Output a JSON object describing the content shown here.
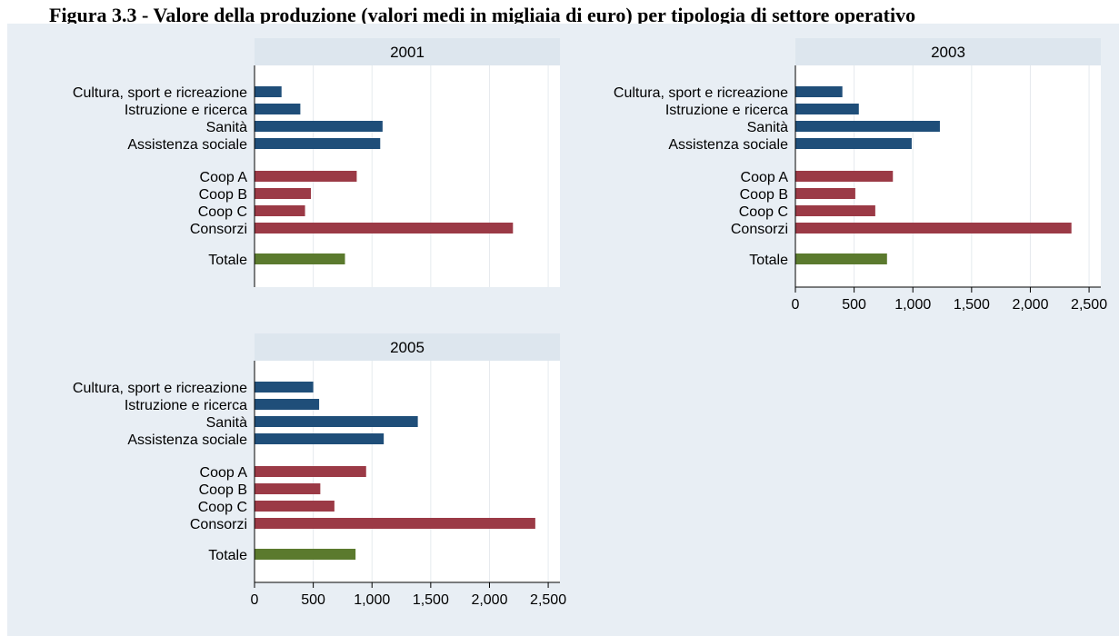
{
  "title": "Figura 3.3 - Valore della produzione (valori medi in migliaia di euro) per tipologia di settore operativo",
  "colors": {
    "background": "#e8eef4",
    "plot_background": "#ffffff",
    "strip": "#dde6ee",
    "sector": "#1f4e79",
    "coop": "#9b3a46",
    "total": "#5b7a2e"
  },
  "chart_data": [
    {
      "type": "bar",
      "orientation": "horizontal",
      "title": "2001",
      "categories": [
        "Cultura, sport e ricreazione",
        "Istruzione e ricerca",
        "Sanità",
        "Assistenza sociale",
        "Coop A",
        "Coop B",
        "Coop C",
        "Consorzi",
        "Totale"
      ],
      "groups": [
        "sector",
        "sector",
        "sector",
        "sector",
        "coop",
        "coop",
        "coop",
        "coop",
        "total"
      ],
      "values": [
        230,
        390,
        1090,
        1070,
        870,
        480,
        430,
        2200,
        770
      ],
      "xlim": [
        0,
        2600
      ],
      "xticks": [
        0,
        500,
        1000,
        1500,
        2000,
        2500
      ],
      "xtick_labels": [],
      "grid": true
    },
    {
      "type": "bar",
      "orientation": "horizontal",
      "title": "2003",
      "categories": [
        "Cultura, sport e ricreazione",
        "Istruzione e ricerca",
        "Sanità",
        "Assistenza sociale",
        "Coop A",
        "Coop B",
        "Coop C",
        "Consorzi",
        "Totale"
      ],
      "groups": [
        "sector",
        "sector",
        "sector",
        "sector",
        "coop",
        "coop",
        "coop",
        "coop",
        "total"
      ],
      "values": [
        400,
        540,
        1230,
        990,
        830,
        510,
        680,
        2350,
        780
      ],
      "xlim": [
        0,
        2600
      ],
      "xticks": [
        0,
        500,
        1000,
        1500,
        2000,
        2500
      ],
      "xtick_labels": [
        "0",
        "500",
        "1,000",
        "1,500",
        "2,000",
        "2,500"
      ],
      "grid": true
    },
    {
      "type": "bar",
      "orientation": "horizontal",
      "title": "2005",
      "categories": [
        "Cultura, sport e ricreazione",
        "Istruzione e ricerca",
        "Sanità",
        "Assistenza sociale",
        "Coop A",
        "Coop B",
        "Coop C",
        "Consorzi",
        "Totale"
      ],
      "groups": [
        "sector",
        "sector",
        "sector",
        "sector",
        "coop",
        "coop",
        "coop",
        "coop",
        "total"
      ],
      "values": [
        500,
        550,
        1390,
        1100,
        950,
        560,
        680,
        2390,
        860
      ],
      "xlim": [
        0,
        2600
      ],
      "xticks": [
        0,
        500,
        1000,
        1500,
        2000,
        2500
      ],
      "xtick_labels": [
        "0",
        "500",
        "1,000",
        "1,500",
        "2,000",
        "2,500"
      ],
      "grid": true
    }
  ]
}
